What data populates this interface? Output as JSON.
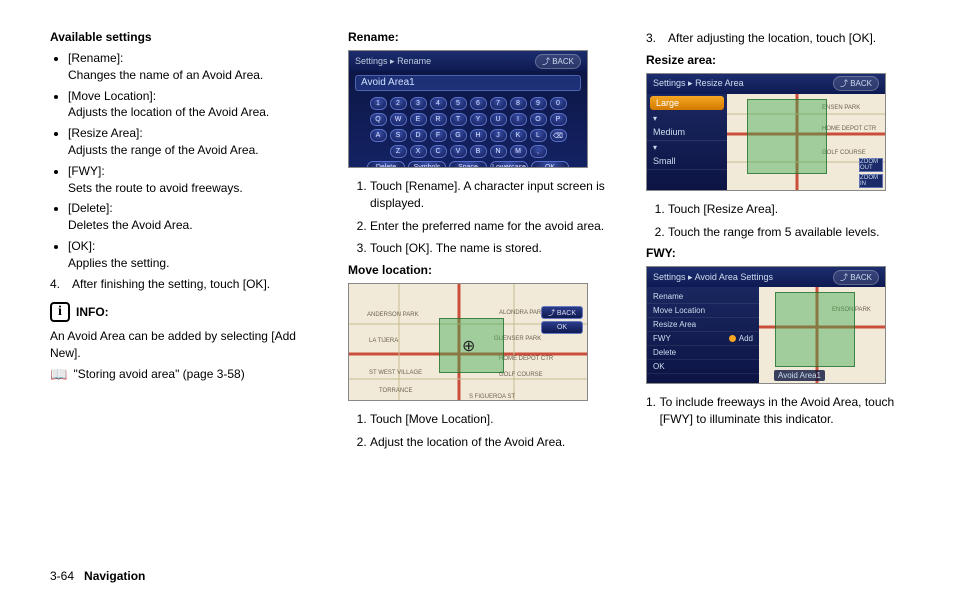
{
  "col1": {
    "heading": "Available settings",
    "items": [
      {
        "label": "[Rename]:",
        "desc": "Changes the name of an Avoid Area."
      },
      {
        "label": "[Move Location]:",
        "desc": "Adjusts the location of the Avoid Area."
      },
      {
        "label": "[Resize Area]:",
        "desc": "Adjusts the range of the Avoid Area."
      },
      {
        "label": "[FWY]:",
        "desc": "Sets the route to avoid freeways."
      },
      {
        "label": "[Delete]:",
        "desc": "Deletes the Avoid Area."
      },
      {
        "label": "[OK]:",
        "desc": "Applies the setting."
      }
    ],
    "step4_num": "4.",
    "step4": "After finishing the setting, touch [OK].",
    "info_label": "INFO:",
    "info_text": "An Avoid Area can be added by selecting [Add New].",
    "ref_text": "\"Storing avoid area\" (page 3-58)"
  },
  "col2": {
    "rename_heading": "Rename:",
    "kb_title_a": "Settings",
    "kb_title_b": "Rename",
    "kb_back": "⤴ BACK",
    "kb_field": "Avoid Area1",
    "kb_row1": [
      "1",
      "2",
      "3",
      "4",
      "5",
      "6",
      "7",
      "8",
      "9",
      "0"
    ],
    "kb_row2": [
      "Q",
      "W",
      "E",
      "R",
      "T",
      "Y",
      "U",
      "I",
      "O",
      "P"
    ],
    "kb_row3": [
      "A",
      "S",
      "D",
      "F",
      "G",
      "H",
      "J",
      "K",
      "L",
      "⌫"
    ],
    "kb_row4": [
      "Z",
      "X",
      "C",
      "V",
      "B",
      "N",
      "M",
      ","
    ],
    "kb_btns": [
      "Delete",
      "Symbols",
      "Space",
      "Lowercase",
      "OK"
    ],
    "rename_steps": [
      "Touch [Rename]. A character input screen is displayed.",
      "Enter the preferred name for the avoid area.",
      "Touch [OK]. The name is stored."
    ],
    "move_heading": "Move location:",
    "move_bar": "",
    "move_ok": "OK",
    "move_back": "⤴ BACK",
    "move_steps": [
      "Touch [Move Location].",
      "Adjust the location of the Avoid Area."
    ]
  },
  "col3": {
    "step3_num": "3.",
    "step3": "After adjusting the location, touch [OK].",
    "resize_heading": "Resize area:",
    "resize_title_a": "Settings",
    "resize_title_b": "Resize Area",
    "resize_back": "⤴ BACK",
    "size_large": "Large",
    "size_medium": "Medium",
    "size_small": "Small",
    "resize_steps": [
      "Touch [Resize Area].",
      "Touch the range from 5 available levels."
    ],
    "fwy_heading": "FWY:",
    "fwy_title_a": "Settings",
    "fwy_title_b": "Avoid Area Settings",
    "fwy_back": "⤴ BACK",
    "set_items": [
      "Rename",
      "Move Location",
      "Resize Area",
      "FWY",
      "Delete",
      "OK"
    ],
    "fwy_add": "Add",
    "avoid_label": "Avoid Area1",
    "zoom_in": "ZOOM IN",
    "zoom_out": "ZOOM OUT",
    "fwy_step_num": "1.",
    "fwy_step": "To include freeways in the Avoid Area, touch [FWY] to illuminate this indicator."
  },
  "footer": {
    "page": "3-64",
    "section": "Navigation"
  },
  "map_colors": {
    "road_major": "#c94f3b",
    "road_minor": "#b8a87a",
    "water": "#fff",
    "label": "#6d6450"
  }
}
